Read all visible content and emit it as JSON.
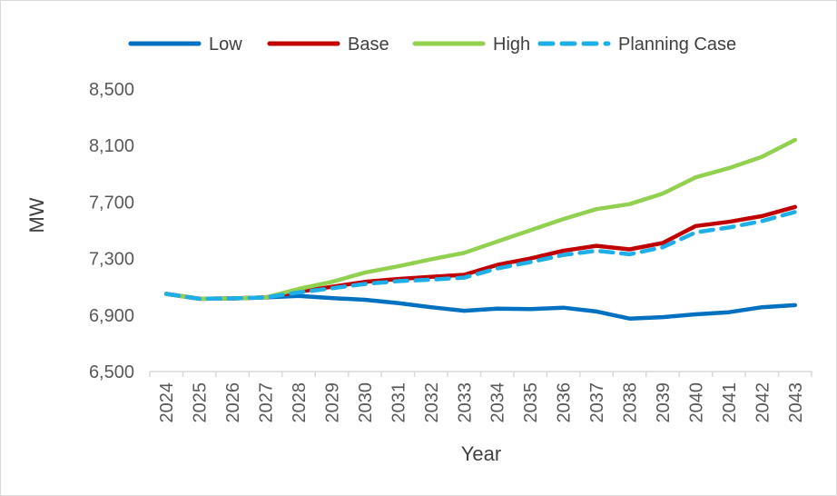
{
  "chart_data": {
    "type": "line",
    "title": "",
    "xlabel": "Year",
    "ylabel": "MW",
    "ylim": [
      6500,
      8500
    ],
    "yticks": [
      "6,500",
      "6,900",
      "7,300",
      "7,700",
      "8,100",
      "8,500"
    ],
    "ytick_values": [
      6500,
      6900,
      7300,
      7700,
      8100,
      8500
    ],
    "grid": false,
    "legend_position": "top",
    "categories": [
      "2024",
      "2025",
      "2026",
      "2027",
      "2028",
      "2029",
      "2030",
      "2031",
      "2032",
      "2033",
      "2034",
      "2035",
      "2036",
      "2037",
      "2038",
      "2039",
      "2040",
      "2041",
      "2042",
      "2043"
    ],
    "series": [
      {
        "name": "Low",
        "color": "#0070C0",
        "dash": "solid",
        "values": [
          7050,
          7015,
          7018,
          7025,
          7035,
          7020,
          7008,
          6985,
          6955,
          6930,
          6945,
          6942,
          6952,
          6925,
          6875,
          6885,
          6905,
          6920,
          6955,
          6970
        ]
      },
      {
        "name": "Base",
        "color": "#C00000",
        "dash": "solid",
        "values": [
          7050,
          7015,
          7018,
          7025,
          7065,
          7100,
          7135,
          7155,
          7170,
          7185,
          7255,
          7300,
          7355,
          7390,
          7365,
          7410,
          7530,
          7560,
          7600,
          7665
        ]
      },
      {
        "name": "High",
        "color": "#92D050",
        "dash": "solid",
        "values": [
          7050,
          7015,
          7018,
          7025,
          7085,
          7135,
          7200,
          7245,
          7295,
          7340,
          7420,
          7500,
          7580,
          7650,
          7685,
          7760,
          7875,
          7940,
          8020,
          8140
        ]
      },
      {
        "name": "Planning Case",
        "color": "#1EAEE8",
        "dash": "dashed",
        "values": [
          7050,
          7015,
          7018,
          7025,
          7060,
          7090,
          7120,
          7140,
          7150,
          7165,
          7230,
          7275,
          7325,
          7355,
          7330,
          7380,
          7485,
          7520,
          7565,
          7630
        ]
      }
    ]
  }
}
